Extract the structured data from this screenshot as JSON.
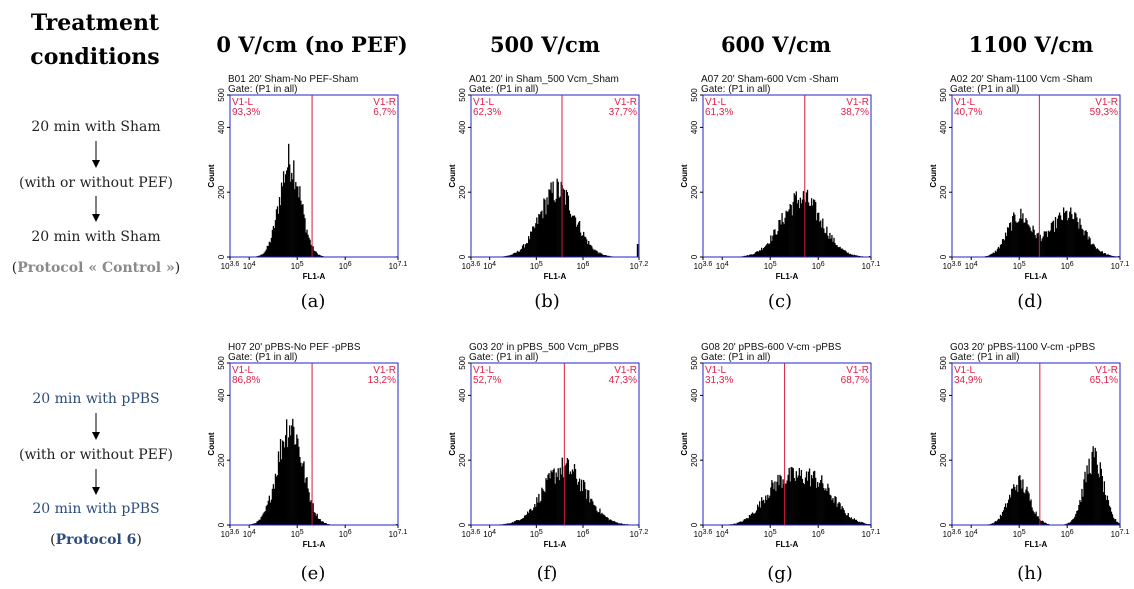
{
  "header": {
    "treatment_line1": "Treatment",
    "treatment_line2": "conditions",
    "columns": [
      "0 V/cm (no PEF)",
      "500 V/cm",
      "600 V/cm",
      "1100 V/cm"
    ]
  },
  "protocols": [
    {
      "step1": "20 min with Sham",
      "step2": "(with or without PEF)",
      "step3": "20 min with Sham",
      "label_open": "(",
      "label_name": "Protocol « Control »",
      "label_close": ")",
      "text_color": "#222222",
      "name_color": "#8a8a8a"
    },
    {
      "step1": "20 min with pPBS",
      "step2": "(with or without PEF)",
      "step3": "20 min with pPBS",
      "label_open": "(",
      "label_name": "Protocol 6",
      "label_close": ")",
      "text_color": "#2e4d7b",
      "name_color": "#2e4d7b"
    }
  ],
  "colors": {
    "frame": "#2323c8",
    "gate": "#d01c3c",
    "histogram": "#000000"
  },
  "chart_data": [
    {
      "type": "area",
      "panel": "(a)",
      "title": "B01 20' Sham-No PEF-Sham",
      "gate_text": "Gate: (P1 in all)",
      "ylabel": "Count",
      "xlabel": "FL1-A",
      "x_scale": "log",
      "xlim": [
        3.6,
        7.1
      ],
      "ylim": [
        0,
        500
      ],
      "yticks": [
        "0",
        "200",
        "400",
        "500"
      ],
      "xticks": [
        "10^3.6",
        "10^4",
        "10^5",
        "10^6",
        "10^7.1"
      ],
      "gate": 5.31,
      "left_label": "V1-L",
      "left_pct": "93,3%",
      "right_label": "V1-R",
      "right_pct": "6,7%",
      "peaks": [
        {
          "mu": 4.85,
          "sigma": 0.22,
          "height": 295
        }
      ],
      "tail": 2
    },
    {
      "type": "area",
      "panel": "(b)",
      "title": "A01 20' in Sham_500 Vcm_Sham",
      "gate_text": "Gate: (P1 in all)",
      "ylabel": "Count",
      "xlabel": "FL1-A",
      "x_scale": "log",
      "xlim": [
        3.6,
        7.2
      ],
      "ylim": [
        0,
        500
      ],
      "yticks": [
        "0",
        "200",
        "400",
        "500"
      ],
      "xticks": [
        "10^3.6",
        "10^4",
        "10^5",
        "10^6",
        "10^7.2"
      ],
      "gate": 5.55,
      "left_label": "V1-L",
      "left_pct": "62,3%",
      "right_label": "V1-R",
      "right_pct": "37,7%",
      "peaks": [
        {
          "mu": 5.45,
          "sigma": 0.38,
          "height": 205
        }
      ],
      "tail": 40
    },
    {
      "type": "area",
      "panel": "(c)",
      "title": "A07 20' Sham-600 Vcm -Sham",
      "gate_text": "Gate: (P1 in all)",
      "ylabel": "Count",
      "xlabel": "FL1-A",
      "x_scale": "log",
      "xlim": [
        3.6,
        7.1
      ],
      "ylim": [
        0,
        500
      ],
      "yticks": [
        "0",
        "200",
        "400",
        "500"
      ],
      "xticks": [
        "10^3.6",
        "10^4",
        "10^5",
        "10^6",
        "10^7.1"
      ],
      "gate": 5.72,
      "left_label": "V1-L",
      "left_pct": "61,3%",
      "right_label": "V1-R",
      "right_pct": "38,7%",
      "peaks": [
        {
          "mu": 5.65,
          "sigma": 0.42,
          "height": 180
        }
      ],
      "tail": 3
    },
    {
      "type": "area",
      "panel": "(d)",
      "title": "A02 20' Sham-1100 Vcm -Sham",
      "gate_text": "Gate: (P1 in all)",
      "ylabel": "Count",
      "xlabel": "FL1-A",
      "x_scale": "log",
      "xlim": [
        3.6,
        7.1
      ],
      "ylim": [
        0,
        500
      ],
      "yticks": [
        "0",
        "200",
        "400",
        "500"
      ],
      "xticks": [
        "10^3.6",
        "10^4",
        "10^5",
        "10^6",
        "10^7.1"
      ],
      "gate": 5.42,
      "left_label": "V1-L",
      "left_pct": "40,7%",
      "right_label": "V1-R",
      "right_pct": "59,3%",
      "peaks": [
        {
          "mu": 5.0,
          "sigma": 0.25,
          "height": 125
        },
        {
          "mu": 6.0,
          "sigma": 0.35,
          "height": 130
        }
      ],
      "tail": 3
    },
    {
      "type": "area",
      "panel": "(e)",
      "title": "H07 20' pPBS-No PEF -pPBS",
      "gate_text": "Gate: (P1 in all)",
      "ylabel": "Count",
      "xlabel": "FL1-A",
      "x_scale": "log",
      "xlim": [
        3.6,
        7.1
      ],
      "ylim": [
        0,
        500
      ],
      "yticks": [
        "0",
        "200",
        "400",
        "500"
      ],
      "xticks": [
        "10^3.6",
        "10^4",
        "10^5",
        "10^6",
        "10^7.1"
      ],
      "gate": 5.31,
      "left_label": "V1-L",
      "left_pct": "86,8%",
      "right_label": "V1-R",
      "right_pct": "13,2%",
      "peaks": [
        {
          "mu": 4.85,
          "sigma": 0.26,
          "height": 310
        }
      ],
      "tail": 3
    },
    {
      "type": "area",
      "panel": "(f)",
      "title": "G03 20' in pPBS_500 Vcm_pPBS",
      "gate_text": "Gate: (P1 in all)",
      "ylabel": "Count",
      "xlabel": "FL1-A",
      "x_scale": "log",
      "xlim": [
        3.6,
        7.2
      ],
      "ylim": [
        0,
        500
      ],
      "yticks": [
        "0",
        "200",
        "400",
        "500"
      ],
      "xticks": [
        "10^3.6",
        "10^4",
        "10^5",
        "10^6",
        "10^7.2"
      ],
      "gate": 5.6,
      "left_label": "V1-L",
      "left_pct": "52,7%",
      "right_label": "V1-R",
      "right_pct": "47,3%",
      "peaks": [
        {
          "mu": 5.6,
          "sigma": 0.45,
          "height": 175
        }
      ],
      "tail": 2
    },
    {
      "type": "area",
      "panel": "(g)",
      "title": "G08 20' pPBS-600 V-cm -pPBS",
      "gate_text": "Gate: (P1 in all)",
      "ylabel": "Count",
      "xlabel": "FL1-A",
      "x_scale": "log",
      "xlim": [
        3.6,
        7.1
      ],
      "ylim": [
        0,
        500
      ],
      "yticks": [
        "0",
        "200",
        "400",
        "500"
      ],
      "xticks": [
        "10^3.6",
        "10^4",
        "10^5",
        "10^6",
        "10^7.1"
      ],
      "gate": 5.3,
      "left_label": "V1-L",
      "left_pct": "31,3%",
      "right_label": "V1-R",
      "right_pct": "68,7%",
      "peaks": [
        {
          "mu": 5.15,
          "sigma": 0.35,
          "height": 105
        },
        {
          "mu": 5.9,
          "sigma": 0.42,
          "height": 135
        }
      ],
      "tail": 3
    },
    {
      "type": "area",
      "panel": "(h)",
      "title": "G03 20' pPBS-1100 V-cm -pPBS",
      "gate_text": "Gate: (P1 in all)",
      "ylabel": "Count",
      "xlabel": "FL1-A",
      "x_scale": "log",
      "xlim": [
        3.6,
        7.1
      ],
      "ylim": [
        0,
        500
      ],
      "yticks": [
        "0",
        "200",
        "400",
        "500"
      ],
      "xticks": [
        "10^3.6",
        "10^4",
        "10^5",
        "10^6",
        "10^7.1"
      ],
      "gate": 5.43,
      "left_label": "V1-L",
      "left_pct": "34,9%",
      "right_label": "V1-R",
      "right_pct": "65,1%",
      "peaks": [
        {
          "mu": 5.0,
          "sigma": 0.22,
          "height": 130
        },
        {
          "mu": 6.55,
          "sigma": 0.2,
          "height": 205
        }
      ],
      "tail": 3
    }
  ]
}
